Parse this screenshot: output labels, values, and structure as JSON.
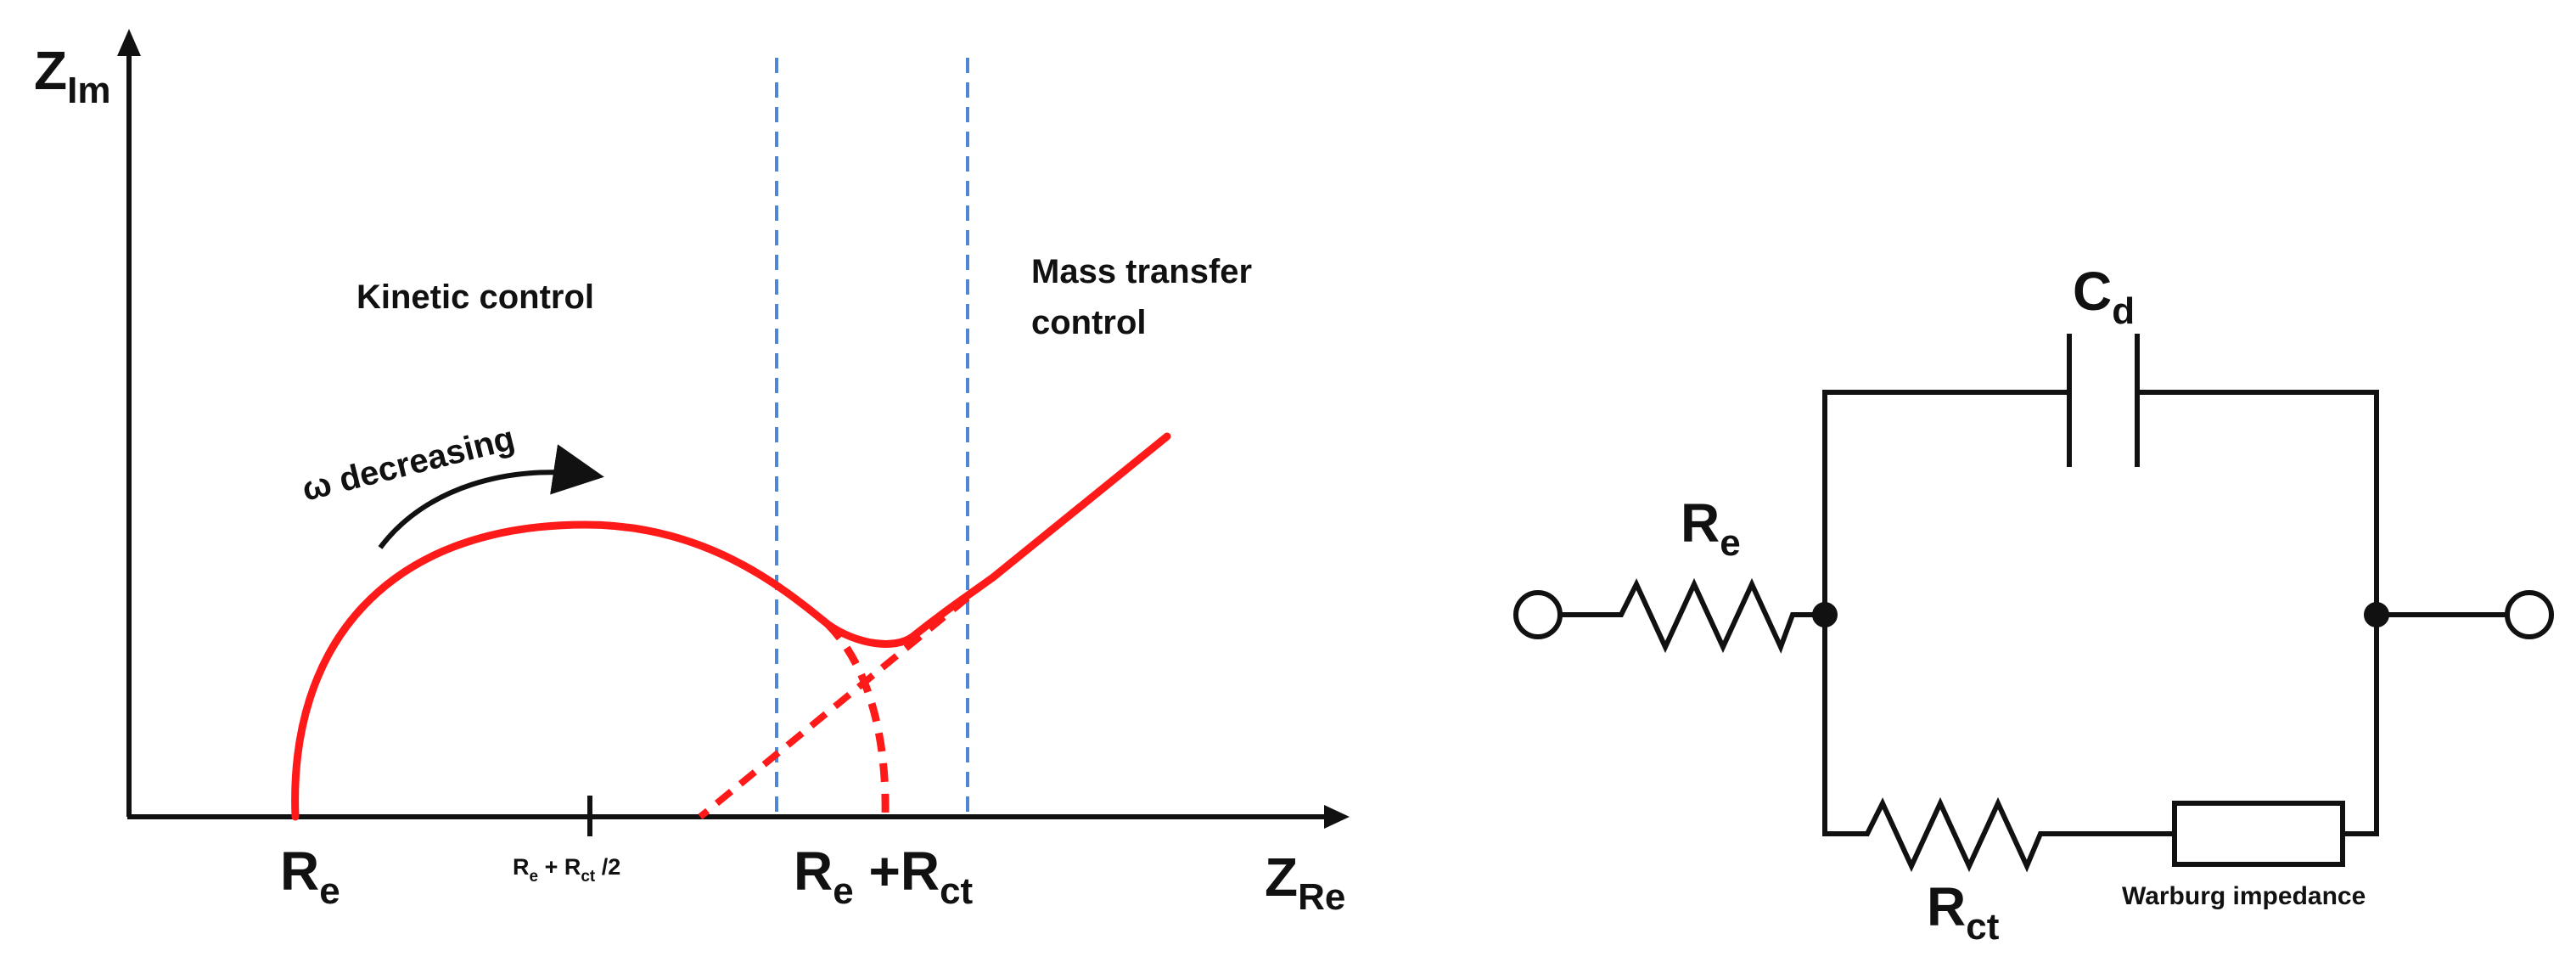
{
  "nyquist": {
    "y_axis_label": "Z",
    "y_axis_sub": "Im",
    "x_axis_label": "Z",
    "x_axis_sub": "Re",
    "region_left": "Kinetic control",
    "region_right_line1": "Mass transfer",
    "region_right_line2": "control",
    "omega_label": "ω decreasing",
    "tick1_main": "R",
    "tick1_sub": "e",
    "tick2_r1": "R",
    "tick2_s1": "e",
    "tick2_plus": " + R",
    "tick2_s2": "ct",
    "tick2_tail": "  /2",
    "tick3_r1": "R",
    "tick3_s1": "e",
    "tick3_plus": " +R",
    "tick3_s2": "ct",
    "curve_color": "#ff1a1a",
    "divider_color": "#4f86d6"
  },
  "circuit": {
    "capacitor_main": "C",
    "capacitor_sub": "d",
    "resistor1_main": "R",
    "resistor1_sub": "e",
    "resistor2_main": "R",
    "resistor2_sub": "ct",
    "warburg_label": "Warburg impedance"
  }
}
